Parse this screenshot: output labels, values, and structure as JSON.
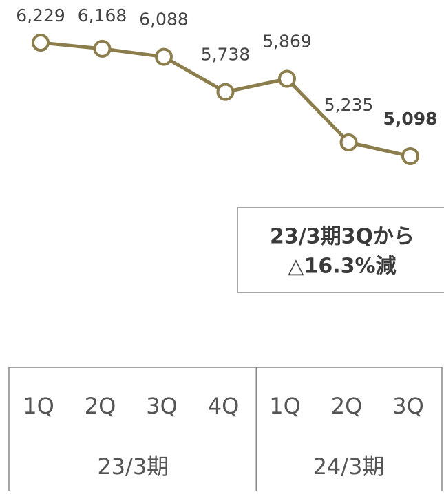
{
  "chart_data": {
    "type": "line",
    "categories": [
      "1Q",
      "2Q",
      "3Q",
      "4Q",
      "1Q",
      "2Q",
      "3Q"
    ],
    "groups": [
      {
        "name": "23/3期",
        "span": 4
      },
      {
        "name": "24/3期",
        "span": 3
      }
    ],
    "values": [
      6229,
      6168,
      6088,
      5738,
      5869,
      5235,
      5098
    ],
    "value_labels": [
      "6,229",
      "6,168",
      "6,088",
      "5,738",
      "5,869",
      "5,235",
      "5,098"
    ],
    "color": "#8c7e4c",
    "annotation": [
      "23/3期3Qから",
      "△16.3%減"
    ]
  }
}
